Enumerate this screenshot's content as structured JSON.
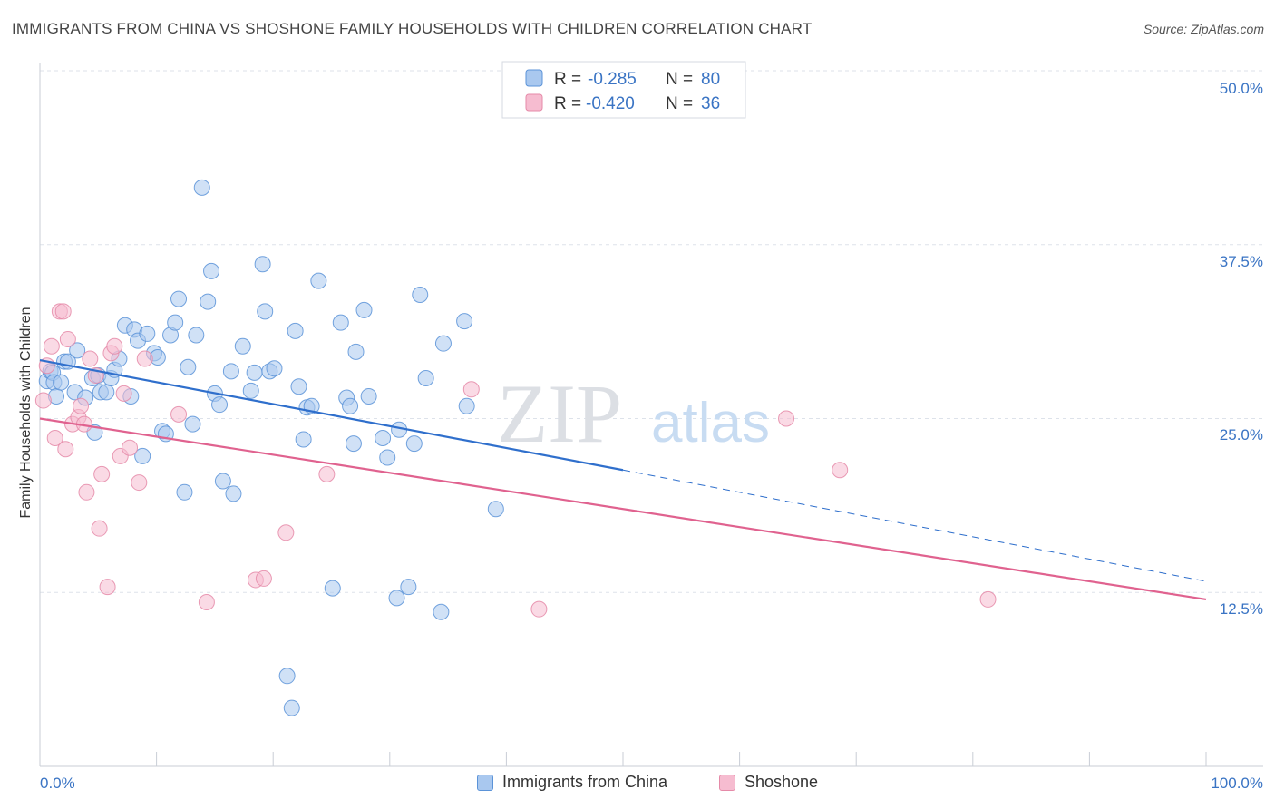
{
  "title": "IMMIGRANTS FROM CHINA VS SHOSHONE FAMILY HOUSEHOLDS WITH CHILDREN CORRELATION CHART",
  "source": "Source: ZipAtlas.com",
  "watermark": {
    "zip": "ZIP",
    "atlas": "atlas"
  },
  "colors": {
    "china_fill": "#a9c8ef",
    "china_stroke": "#5b93d8",
    "china_line": "#2f6fcc",
    "shoshone_fill": "#f6bcd0",
    "shoshone_stroke": "#e58aa8",
    "shoshone_line": "#e0628f",
    "tick_text": "#3a74c4",
    "grid": "#dde2ea"
  },
  "legend": {
    "rows": [
      {
        "r_label": "R =",
        "r_value": "-0.285",
        "n_label": "N =",
        "n_value": "80"
      },
      {
        "r_label": "R =",
        "r_value": "-0.420",
        "n_label": "N =",
        "n_value": "36"
      }
    ]
  },
  "chart_data": {
    "type": "scatter",
    "title": "IMMIGRANTS FROM CHINA VS SHOSHONE FAMILY HOUSEHOLDS WITH CHILDREN CORRELATION CHART",
    "xlabel": "",
    "ylabel": "Family Households with Children",
    "xlim": [
      0,
      100
    ],
    "ylim": [
      0,
      50
    ],
    "x_tick_labels": [
      "0.0%",
      "100.0%"
    ],
    "y_ticks": [
      12.5,
      25.0,
      37.5,
      50.0
    ],
    "y_tick_labels": [
      "12.5%",
      "25.0%",
      "37.5%",
      "50.0%"
    ],
    "grid": true,
    "legend_position": "top-center",
    "series": [
      {
        "name": "Immigrants from China",
        "r": -0.285,
        "n": 80,
        "trend": {
          "x0": 0,
          "y0": 29.2,
          "x1": 50,
          "y1": 21.3,
          "dash_to_x": 100,
          "dash_to_y": 13.3
        },
        "points": [
          [
            0.6,
            27.7
          ],
          [
            0.9,
            28.4
          ],
          [
            1.1,
            28.3
          ],
          [
            1.2,
            27.6
          ],
          [
            1.4,
            26.6
          ],
          [
            1.8,
            27.6
          ],
          [
            2.1,
            29.1
          ],
          [
            2.4,
            29.1
          ],
          [
            3.0,
            26.9
          ],
          [
            3.2,
            29.9
          ],
          [
            3.9,
            26.5
          ],
          [
            4.5,
            27.9
          ],
          [
            4.7,
            24.0
          ],
          [
            5.0,
            28.1
          ],
          [
            5.2,
            26.9
          ],
          [
            5.7,
            26.9
          ],
          [
            6.1,
            27.9
          ],
          [
            6.4,
            28.5
          ],
          [
            6.8,
            29.3
          ],
          [
            7.3,
            31.7
          ],
          [
            7.8,
            26.6
          ],
          [
            8.1,
            31.4
          ],
          [
            8.4,
            30.6
          ],
          [
            8.8,
            22.3
          ],
          [
            9.2,
            31.1
          ],
          [
            9.8,
            29.7
          ],
          [
            10.1,
            29.4
          ],
          [
            10.5,
            24.1
          ],
          [
            10.8,
            23.9
          ],
          [
            11.2,
            31.0
          ],
          [
            11.6,
            31.9
          ],
          [
            11.9,
            33.6
          ],
          [
            12.4,
            19.7
          ],
          [
            12.7,
            28.7
          ],
          [
            13.1,
            24.6
          ],
          [
            13.4,
            31.0
          ],
          [
            13.9,
            41.6
          ],
          [
            14.4,
            33.4
          ],
          [
            14.7,
            35.6
          ],
          [
            15.0,
            26.8
          ],
          [
            15.4,
            26.0
          ],
          [
            15.7,
            20.5
          ],
          [
            16.4,
            28.4
          ],
          [
            16.6,
            19.6
          ],
          [
            17.4,
            30.2
          ],
          [
            18.1,
            27.0
          ],
          [
            18.4,
            28.3
          ],
          [
            19.1,
            36.1
          ],
          [
            19.3,
            32.7
          ],
          [
            19.7,
            28.4
          ],
          [
            20.1,
            28.6
          ],
          [
            21.2,
            6.5
          ],
          [
            21.6,
            4.2
          ],
          [
            21.9,
            31.3
          ],
          [
            22.2,
            27.3
          ],
          [
            22.6,
            23.5
          ],
          [
            22.9,
            25.8
          ],
          [
            23.3,
            25.9
          ],
          [
            23.9,
            34.9
          ],
          [
            25.1,
            12.8
          ],
          [
            25.8,
            31.9
          ],
          [
            26.3,
            26.5
          ],
          [
            26.6,
            25.9
          ],
          [
            26.9,
            23.2
          ],
          [
            27.1,
            29.8
          ],
          [
            27.8,
            32.8
          ],
          [
            28.2,
            26.6
          ],
          [
            29.4,
            23.6
          ],
          [
            29.8,
            22.2
          ],
          [
            30.6,
            12.1
          ],
          [
            30.8,
            24.2
          ],
          [
            31.6,
            12.9
          ],
          [
            32.1,
            23.2
          ],
          [
            32.6,
            33.9
          ],
          [
            33.1,
            27.9
          ],
          [
            34.4,
            11.1
          ],
          [
            34.6,
            30.4
          ],
          [
            36.4,
            32.0
          ],
          [
            36.6,
            25.9
          ],
          [
            39.1,
            18.5
          ]
        ]
      },
      {
        "name": "Shoshone",
        "r": -0.42,
        "n": 36,
        "trend": {
          "x0": 0,
          "y0": 25.0,
          "x1": 100,
          "y1": 12.0
        },
        "points": [
          [
            0.3,
            26.3
          ],
          [
            0.6,
            28.8
          ],
          [
            1.0,
            30.2
          ],
          [
            1.3,
            23.6
          ],
          [
            1.7,
            32.7
          ],
          [
            2.0,
            32.7
          ],
          [
            2.2,
            22.8
          ],
          [
            2.4,
            30.7
          ],
          [
            2.8,
            24.6
          ],
          [
            3.3,
            25.1
          ],
          [
            3.5,
            25.9
          ],
          [
            3.8,
            24.6
          ],
          [
            4.0,
            19.7
          ],
          [
            4.3,
            29.3
          ],
          [
            4.8,
            28.1
          ],
          [
            5.1,
            17.1
          ],
          [
            5.3,
            21.0
          ],
          [
            5.8,
            12.9
          ],
          [
            6.1,
            29.7
          ],
          [
            6.4,
            30.2
          ],
          [
            6.9,
            22.3
          ],
          [
            7.2,
            26.8
          ],
          [
            7.7,
            22.9
          ],
          [
            8.5,
            20.4
          ],
          [
            9.0,
            29.3
          ],
          [
            11.9,
            25.3
          ],
          [
            14.3,
            11.8
          ],
          [
            18.5,
            13.4
          ],
          [
            19.2,
            13.5
          ],
          [
            21.1,
            16.8
          ],
          [
            24.6,
            21.0
          ],
          [
            37.0,
            27.1
          ],
          [
            42.8,
            11.3
          ],
          [
            64.0,
            25.0
          ],
          [
            68.6,
            21.3
          ],
          [
            81.3,
            12.0
          ]
        ]
      }
    ]
  },
  "bottom_legend": [
    {
      "label": "Immigrants from China"
    },
    {
      "label": "Shoshone"
    }
  ]
}
